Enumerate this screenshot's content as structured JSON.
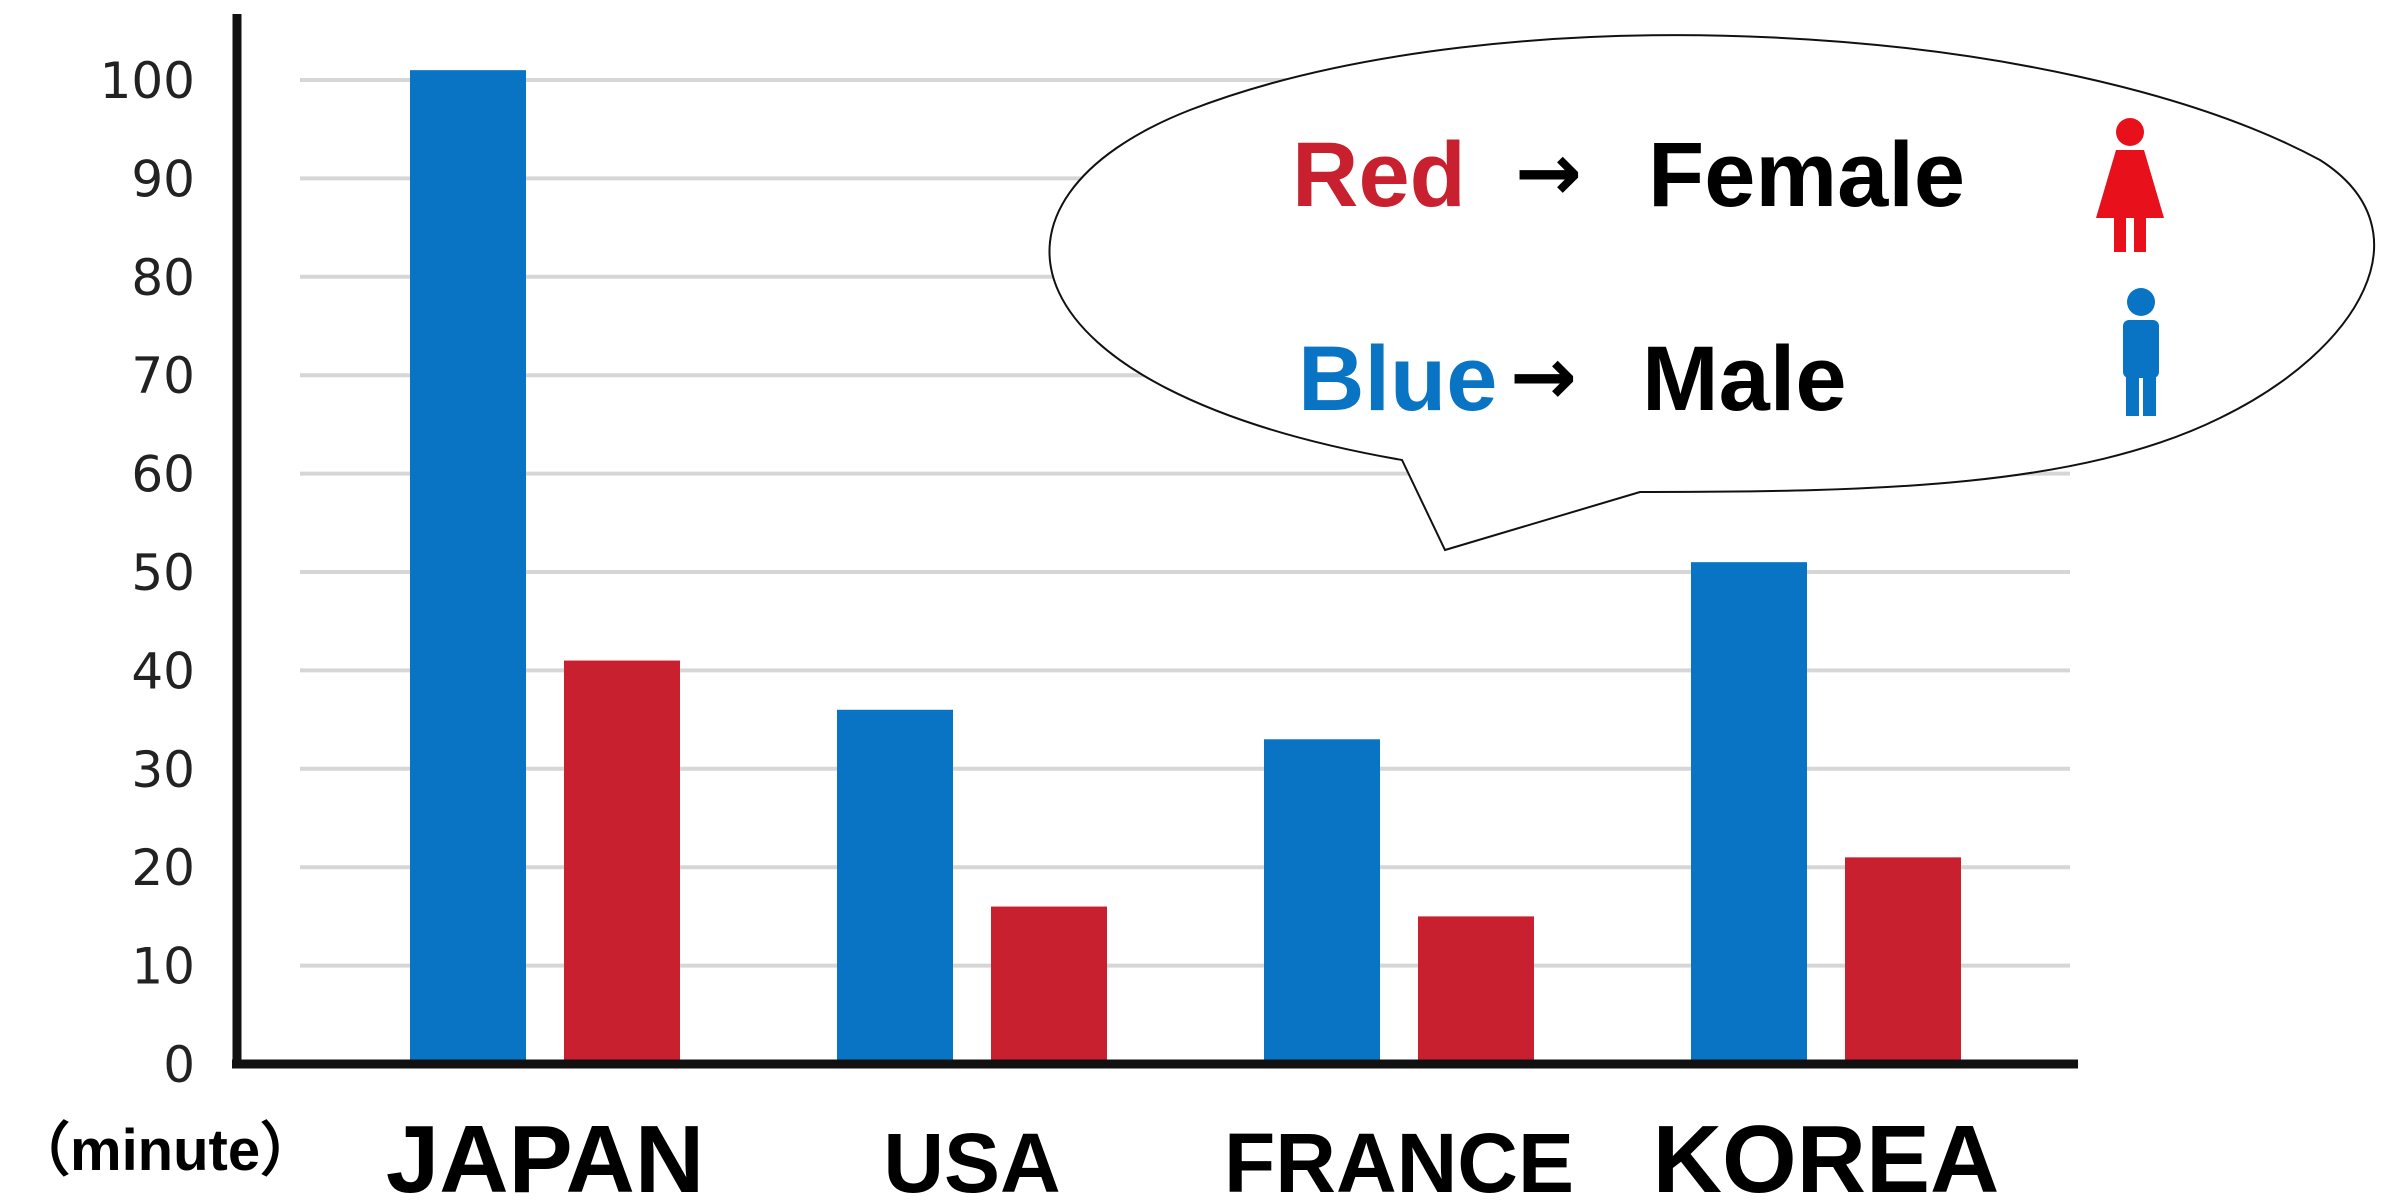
{
  "chart_data": {
    "type": "bar",
    "categories": [
      "JAPAN",
      "USA",
      "FRANCE",
      "KOREA"
    ],
    "series": [
      {
        "name": "Male",
        "color": "#0a74c4",
        "values": [
          101,
          36,
          33,
          51
        ]
      },
      {
        "name": "Female",
        "color": "#c8202e",
        "values": [
          41,
          16,
          15,
          21
        ]
      }
    ],
    "y_ticks": [
      "0",
      "10",
      "20",
      "30",
      "40",
      "50",
      "60",
      "70",
      "80",
      "90",
      "100"
    ],
    "ylim": [
      0,
      100
    ],
    "ylabel": "（minute）",
    "grid": true,
    "legend": {
      "placement": "top-right speech bubble",
      "items": [
        {
          "key": "Red",
          "arrow": "→",
          "label": "Female",
          "color": "#c8202e",
          "icon": "female-icon"
        },
        {
          "key": "Blue",
          "arrow": "→",
          "label": "Male",
          "color": "#0a74c4",
          "icon": "male-icon"
        }
      ]
    }
  }
}
